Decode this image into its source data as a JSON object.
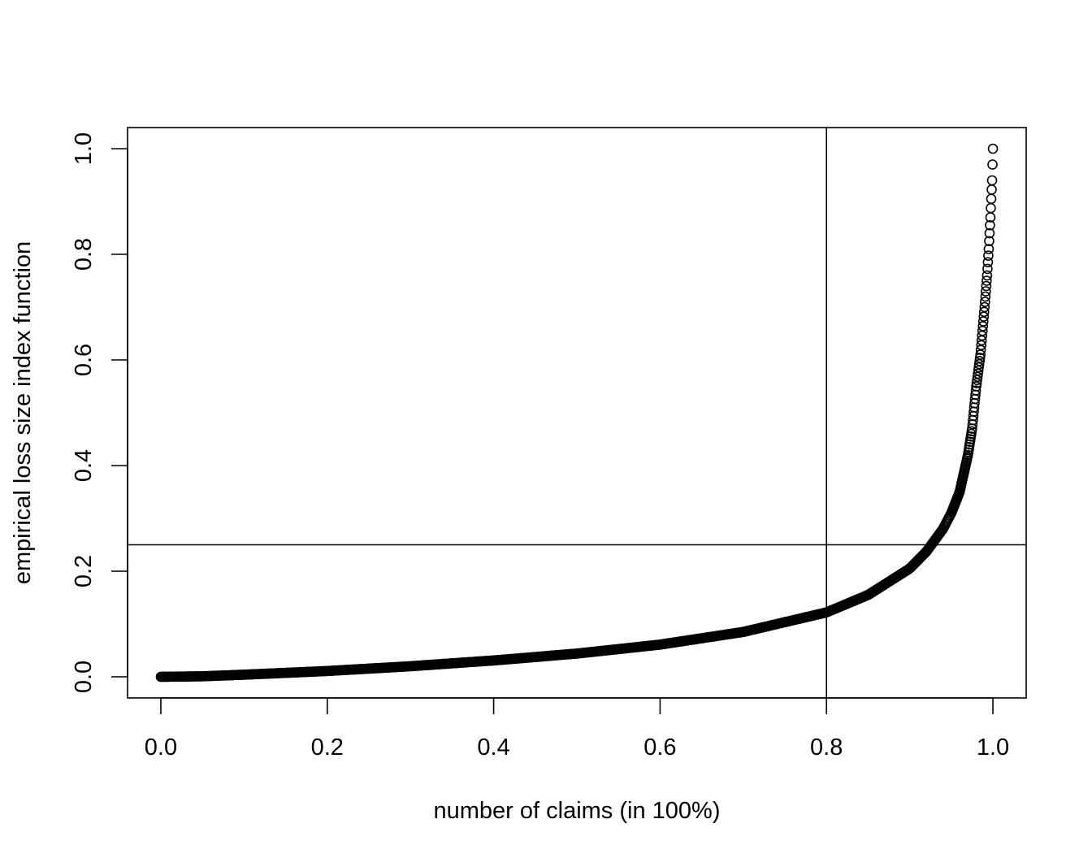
{
  "chart_data": {
    "type": "scatter",
    "title": "",
    "xlabel": "number of claims (in 100%)",
    "ylabel": "empirical loss size index function",
    "xlim": [
      -0.04,
      1.04
    ],
    "ylim": [
      -0.04,
      1.04
    ],
    "x_ticks": [
      0.0,
      0.2,
      0.4,
      0.6,
      0.8,
      1.0
    ],
    "x_tick_labels": [
      "0.0",
      "0.2",
      "0.4",
      "0.6",
      "0.8",
      "1.0"
    ],
    "y_ticks": [
      0.0,
      0.2,
      0.4,
      0.6,
      0.8,
      1.0
    ],
    "y_tick_labels": [
      "0.0",
      "0.2",
      "0.4",
      "0.6",
      "0.8",
      "1.0"
    ],
    "grid": false,
    "legend": "none",
    "marker": "open-circle",
    "marker_color": "#000000",
    "reference_lines": [
      {
        "orientation": "vertical",
        "value": 0.8
      },
      {
        "orientation": "horizontal",
        "value": 0.25
      }
    ],
    "series": [
      {
        "x": [
          0.0,
          0.05,
          0.1,
          0.2,
          0.3,
          0.4,
          0.5,
          0.6,
          0.7,
          0.8,
          0.85,
          0.9,
          0.92,
          0.94,
          0.95,
          0.96,
          0.97,
          0.975,
          0.98,
          0.985,
          0.99,
          0.993,
          0.995,
          0.997,
          0.999,
          1.0
        ],
        "values": [
          0.0,
          0.001,
          0.004,
          0.011,
          0.02,
          0.031,
          0.044,
          0.061,
          0.085,
          0.122,
          0.155,
          0.205,
          0.237,
          0.28,
          0.31,
          0.35,
          0.42,
          0.47,
          0.55,
          0.61,
          0.7,
          0.76,
          0.81,
          0.87,
          0.94,
          1.0
        ]
      }
    ]
  }
}
